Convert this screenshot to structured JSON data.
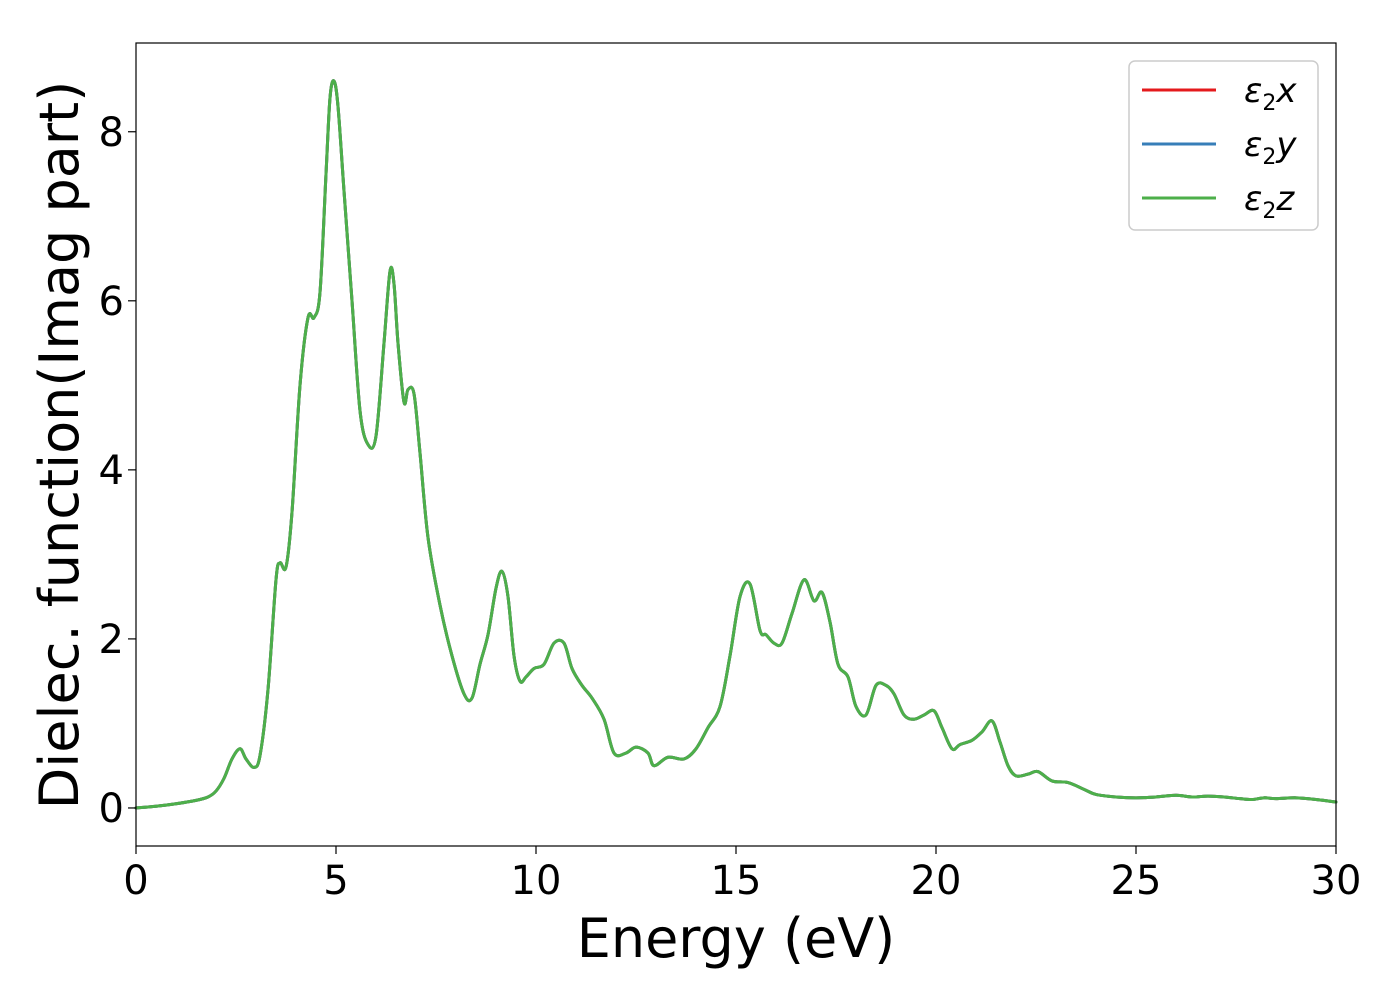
{
  "chart_data": {
    "type": "line",
    "title": "",
    "xlabel": "Energy (eV)",
    "ylabel": "Dielec. function(Imag part)",
    "xlim": [
      0,
      30
    ],
    "ylim": [
      -0.45,
      9.05
    ],
    "grid": false,
    "legend_position": "top-right",
    "x_ticks": [
      0,
      5,
      10,
      15,
      20,
      25,
      30
    ],
    "x_tick_labels": [
      "0",
      "5",
      "10",
      "15",
      "20",
      "25",
      "30"
    ],
    "y_ticks": [
      0,
      2,
      4,
      6,
      8
    ],
    "y_tick_labels": [
      "0",
      "2",
      "4",
      "6",
      "8"
    ],
    "series": [
      {
        "name": "ε2x",
        "legend_main": "ε",
        "legend_sub": "2",
        "legend_suffix": "x",
        "color": "#e41a1c",
        "x": [
          0,
          0.5,
          1.0,
          1.5,
          1.8,
          2.0,
          2.2,
          2.4,
          2.6,
          2.75,
          2.95,
          3.1,
          3.3,
          3.5,
          3.6,
          3.75,
          3.9,
          4.1,
          4.3,
          4.45,
          4.6,
          4.75,
          4.85,
          4.95,
          5.05,
          5.2,
          5.4,
          5.6,
          5.8,
          6.0,
          6.2,
          6.35,
          6.45,
          6.55,
          6.7,
          6.8,
          6.95,
          7.1,
          7.3,
          7.6,
          7.9,
          8.2,
          8.4,
          8.6,
          8.8,
          9.0,
          9.15,
          9.3,
          9.45,
          9.6,
          9.75,
          9.95,
          10.2,
          10.45,
          10.7,
          10.9,
          11.15,
          11.4,
          11.7,
          11.95,
          12.25,
          12.5,
          12.8,
          12.95,
          13.3,
          13.7,
          14.0,
          14.3,
          14.6,
          14.85,
          15.1,
          15.35,
          15.6,
          15.75,
          15.95,
          16.15,
          16.4,
          16.7,
          16.95,
          17.15,
          17.35,
          17.55,
          17.8,
          18.0,
          18.25,
          18.5,
          18.75,
          18.95,
          19.2,
          19.45,
          19.7,
          19.95,
          20.15,
          20.4,
          20.6,
          20.9,
          21.15,
          21.4,
          21.6,
          21.8,
          22.0,
          22.3,
          22.55,
          22.9,
          23.3,
          23.7,
          24.0,
          24.5,
          25.0,
          25.5,
          26.0,
          26.4,
          26.8,
          27.2,
          27.6,
          27.9,
          28.2,
          28.5,
          29.0,
          29.5,
          30.0
        ],
        "y": [
          0.0,
          0.02,
          0.05,
          0.09,
          0.13,
          0.2,
          0.35,
          0.58,
          0.7,
          0.58,
          0.48,
          0.62,
          1.4,
          2.7,
          2.9,
          2.85,
          3.5,
          5.0,
          5.8,
          5.8,
          6.1,
          7.5,
          8.4,
          8.6,
          8.3,
          7.3,
          6.0,
          4.7,
          4.3,
          4.4,
          5.5,
          6.35,
          6.2,
          5.5,
          4.8,
          4.95,
          4.9,
          4.2,
          3.2,
          2.4,
          1.8,
          1.35,
          1.3,
          1.7,
          2.05,
          2.6,
          2.8,
          2.5,
          1.8,
          1.5,
          1.55,
          1.65,
          1.7,
          1.95,
          1.95,
          1.65,
          1.45,
          1.3,
          1.05,
          0.65,
          0.65,
          0.72,
          0.65,
          0.5,
          0.6,
          0.58,
          0.7,
          0.95,
          1.2,
          1.8,
          2.5,
          2.65,
          2.1,
          2.05,
          1.95,
          1.95,
          2.3,
          2.7,
          2.45,
          2.55,
          2.2,
          1.7,
          1.55,
          1.2,
          1.1,
          1.45,
          1.45,
          1.35,
          1.1,
          1.05,
          1.1,
          1.15,
          0.95,
          0.7,
          0.75,
          0.8,
          0.9,
          1.03,
          0.78,
          0.5,
          0.38,
          0.4,
          0.43,
          0.32,
          0.3,
          0.22,
          0.16,
          0.13,
          0.12,
          0.13,
          0.15,
          0.13,
          0.14,
          0.13,
          0.11,
          0.1,
          0.12,
          0.11,
          0.12,
          0.1,
          0.07
        ]
      },
      {
        "name": "ε2y",
        "legend_main": "ε",
        "legend_sub": "2",
        "legend_suffix": "y",
        "color": "#377eb8",
        "x": [
          0,
          0.5,
          1.0,
          1.5,
          1.8,
          2.0,
          2.2,
          2.4,
          2.6,
          2.75,
          2.95,
          3.1,
          3.3,
          3.5,
          3.6,
          3.75,
          3.9,
          4.1,
          4.3,
          4.45,
          4.6,
          4.75,
          4.85,
          4.95,
          5.05,
          5.2,
          5.4,
          5.6,
          5.8,
          6.0,
          6.2,
          6.35,
          6.45,
          6.55,
          6.7,
          6.8,
          6.95,
          7.1,
          7.3,
          7.6,
          7.9,
          8.2,
          8.4,
          8.6,
          8.8,
          9.0,
          9.15,
          9.3,
          9.45,
          9.6,
          9.75,
          9.95,
          10.2,
          10.45,
          10.7,
          10.9,
          11.15,
          11.4,
          11.7,
          11.95,
          12.25,
          12.5,
          12.8,
          12.95,
          13.3,
          13.7,
          14.0,
          14.3,
          14.6,
          14.85,
          15.1,
          15.35,
          15.6,
          15.75,
          15.95,
          16.15,
          16.4,
          16.7,
          16.95,
          17.15,
          17.35,
          17.55,
          17.8,
          18.0,
          18.25,
          18.5,
          18.75,
          18.95,
          19.2,
          19.45,
          19.7,
          19.95,
          20.15,
          20.4,
          20.6,
          20.9,
          21.15,
          21.4,
          21.6,
          21.8,
          22.0,
          22.3,
          22.55,
          22.9,
          23.3,
          23.7,
          24.0,
          24.5,
          25.0,
          25.5,
          26.0,
          26.4,
          26.8,
          27.2,
          27.6,
          27.9,
          28.2,
          28.5,
          29.0,
          29.5,
          30.0
        ],
        "y": [
          0.0,
          0.02,
          0.05,
          0.09,
          0.13,
          0.2,
          0.35,
          0.58,
          0.7,
          0.58,
          0.48,
          0.62,
          1.4,
          2.7,
          2.9,
          2.85,
          3.5,
          5.0,
          5.8,
          5.8,
          6.1,
          7.5,
          8.4,
          8.6,
          8.3,
          7.3,
          6.0,
          4.7,
          4.3,
          4.4,
          5.5,
          6.35,
          6.2,
          5.5,
          4.8,
          4.95,
          4.9,
          4.2,
          3.2,
          2.4,
          1.8,
          1.35,
          1.3,
          1.7,
          2.05,
          2.6,
          2.8,
          2.5,
          1.8,
          1.5,
          1.55,
          1.65,
          1.7,
          1.95,
          1.95,
          1.65,
          1.45,
          1.3,
          1.05,
          0.65,
          0.65,
          0.72,
          0.65,
          0.5,
          0.6,
          0.58,
          0.7,
          0.95,
          1.2,
          1.8,
          2.5,
          2.65,
          2.1,
          2.05,
          1.95,
          1.95,
          2.3,
          2.7,
          2.45,
          2.55,
          2.2,
          1.7,
          1.55,
          1.2,
          1.1,
          1.45,
          1.45,
          1.35,
          1.1,
          1.05,
          1.1,
          1.15,
          0.95,
          0.7,
          0.75,
          0.8,
          0.9,
          1.03,
          0.78,
          0.5,
          0.38,
          0.4,
          0.43,
          0.32,
          0.3,
          0.22,
          0.16,
          0.13,
          0.12,
          0.13,
          0.15,
          0.13,
          0.14,
          0.13,
          0.11,
          0.1,
          0.12,
          0.11,
          0.12,
          0.1,
          0.07
        ]
      },
      {
        "name": "ε2z",
        "legend_main": "ε",
        "legend_sub": "2",
        "legend_suffix": "z",
        "color": "#4daf4a",
        "x": [
          0,
          0.5,
          1.0,
          1.5,
          1.8,
          2.0,
          2.2,
          2.4,
          2.6,
          2.75,
          2.95,
          3.1,
          3.3,
          3.5,
          3.6,
          3.75,
          3.9,
          4.1,
          4.3,
          4.45,
          4.6,
          4.75,
          4.85,
          4.95,
          5.05,
          5.2,
          5.4,
          5.6,
          5.8,
          6.0,
          6.2,
          6.35,
          6.45,
          6.55,
          6.7,
          6.8,
          6.95,
          7.1,
          7.3,
          7.6,
          7.9,
          8.2,
          8.4,
          8.6,
          8.8,
          9.0,
          9.15,
          9.3,
          9.45,
          9.6,
          9.75,
          9.95,
          10.2,
          10.45,
          10.7,
          10.9,
          11.15,
          11.4,
          11.7,
          11.95,
          12.25,
          12.5,
          12.8,
          12.95,
          13.3,
          13.7,
          14.0,
          14.3,
          14.6,
          14.85,
          15.1,
          15.35,
          15.6,
          15.75,
          15.95,
          16.15,
          16.4,
          16.7,
          16.95,
          17.15,
          17.35,
          17.55,
          17.8,
          18.0,
          18.25,
          18.5,
          18.75,
          18.95,
          19.2,
          19.45,
          19.7,
          19.95,
          20.15,
          20.4,
          20.6,
          20.9,
          21.15,
          21.4,
          21.6,
          21.8,
          22.0,
          22.3,
          22.55,
          22.9,
          23.3,
          23.7,
          24.0,
          24.5,
          25.0,
          25.5,
          26.0,
          26.4,
          26.8,
          27.2,
          27.6,
          27.9,
          28.2,
          28.5,
          29.0,
          29.5,
          30.0
        ],
        "y": [
          0.0,
          0.02,
          0.05,
          0.09,
          0.13,
          0.2,
          0.35,
          0.58,
          0.7,
          0.58,
          0.48,
          0.62,
          1.4,
          2.7,
          2.9,
          2.85,
          3.5,
          5.0,
          5.8,
          5.8,
          6.1,
          7.5,
          8.4,
          8.6,
          8.3,
          7.3,
          6.0,
          4.7,
          4.3,
          4.4,
          5.5,
          6.35,
          6.2,
          5.5,
          4.8,
          4.95,
          4.9,
          4.2,
          3.2,
          2.4,
          1.8,
          1.35,
          1.3,
          1.7,
          2.05,
          2.6,
          2.8,
          2.5,
          1.8,
          1.5,
          1.55,
          1.65,
          1.7,
          1.95,
          1.95,
          1.65,
          1.45,
          1.3,
          1.05,
          0.65,
          0.65,
          0.72,
          0.65,
          0.5,
          0.6,
          0.58,
          0.7,
          0.95,
          1.2,
          1.8,
          2.5,
          2.65,
          2.1,
          2.05,
          1.95,
          1.95,
          2.3,
          2.7,
          2.45,
          2.55,
          2.2,
          1.7,
          1.55,
          1.2,
          1.1,
          1.45,
          1.45,
          1.35,
          1.1,
          1.05,
          1.1,
          1.15,
          0.95,
          0.7,
          0.75,
          0.8,
          0.9,
          1.03,
          0.78,
          0.5,
          0.38,
          0.4,
          0.43,
          0.32,
          0.3,
          0.22,
          0.16,
          0.13,
          0.12,
          0.13,
          0.15,
          0.13,
          0.14,
          0.13,
          0.11,
          0.1,
          0.12,
          0.11,
          0.12,
          0.1,
          0.07
        ]
      }
    ]
  }
}
